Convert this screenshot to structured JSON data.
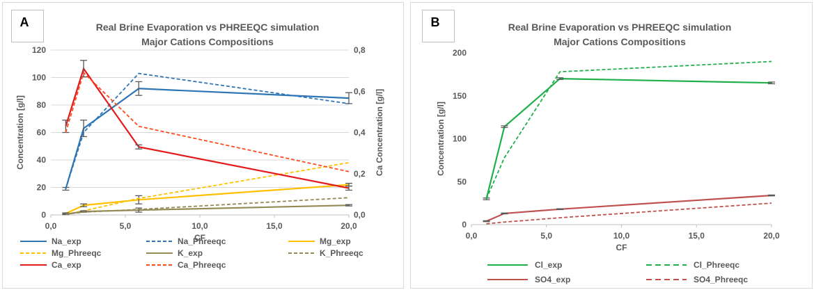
{
  "chart_data": [
    {
      "panel_label": "A",
      "type": "line",
      "title": "Real Brine Evaporation vs PHREEQC simulation",
      "subtitle": "Major Cations Compositions",
      "xlabel": "CF",
      "ylabel": "Concentration [g/l]",
      "y2label": "Ca  Concentration [g/l]",
      "xlim": [
        0,
        20
      ],
      "ylim": [
        0,
        120
      ],
      "y2lim": [
        0,
        0.8
      ],
      "x_ticks": [
        "0,0",
        "5,0",
        "10,0",
        "15,0",
        "20,0"
      ],
      "y_ticks": [
        "0",
        "20",
        "40",
        "60",
        "80",
        "100",
        "120"
      ],
      "y2_ticks": [
        "0,0",
        "0,2",
        "0,4",
        "0,6",
        "0,8"
      ],
      "grid": true,
      "legend_position": "bottom",
      "series": [
        {
          "name": "Na_exp",
          "color": "#2e75b6",
          "dash": "solid",
          "axis": "left",
          "x": [
            1,
            2.2,
            5.9,
            20
          ],
          "y": [
            19,
            63,
            92,
            85
          ],
          "errors": [
            1,
            6,
            5,
            4
          ]
        },
        {
          "name": "Na_Phreeqc",
          "color": "#2e75b6",
          "dash": "dashed",
          "axis": "left",
          "x": [
            1,
            2.2,
            5.9,
            20
          ],
          "y": [
            19,
            60,
            103,
            81
          ]
        },
        {
          "name": "Mg_exp",
          "color": "#ffc000",
          "dash": "solid",
          "axis": "left",
          "x": [
            1,
            2.2,
            5.9,
            20
          ],
          "y": [
            1,
            7,
            11,
            22
          ],
          "errors": [
            0.5,
            1,
            3,
            1
          ]
        },
        {
          "name": "Mg_Phreeqc",
          "color": "#ffc000",
          "dash": "dashed",
          "axis": "left",
          "x": [
            1,
            2.2,
            5.9,
            20
          ],
          "y": [
            0.5,
            3,
            12,
            38
          ]
        },
        {
          "name": "K_exp",
          "color": "#948a54",
          "dash": "solid",
          "axis": "left",
          "x": [
            1,
            2.2,
            5.9,
            20
          ],
          "y": [
            0.5,
            2.5,
            3.5,
            7
          ],
          "errors": [
            0.3,
            0.5,
            1.5,
            0.5
          ]
        },
        {
          "name": "K_Phreeqc",
          "color": "#948a54",
          "dash": "dashed",
          "axis": "left",
          "x": [
            1,
            2.2,
            5.9,
            20
          ],
          "y": [
            0.5,
            2,
            4,
            12.5
          ]
        },
        {
          "name": "Ca_exp",
          "color": "#e31a1c",
          "dash": "solid",
          "axis": "right",
          "x": [
            1,
            2.2,
            5.9,
            20
          ],
          "y": [
            0.43,
            0.71,
            0.33,
            0.13
          ],
          "errors": [
            0.03,
            0.04,
            0.01,
            0.01
          ]
        },
        {
          "name": "Ca_Phreeqc",
          "color": "#ff4a1c",
          "dash": "dashed",
          "axis": "right",
          "x": [
            1,
            2.2,
            5.9,
            20
          ],
          "y": [
            0.4,
            0.69,
            0.43,
            0.21
          ]
        }
      ]
    },
    {
      "panel_label": "B",
      "type": "line",
      "title": "Real Brine Evaporation vs PHREEQC simulation",
      "subtitle": "Major Cations Compositions",
      "xlabel": "CF",
      "ylabel": "Concentration [g/l]",
      "xlim": [
        0,
        20
      ],
      "ylim": [
        0,
        200
      ],
      "x_ticks": [
        "0,0",
        "5,0",
        "10,0",
        "15,0",
        "20,0"
      ],
      "y_ticks": [
        "0",
        "50",
        "100",
        "150",
        "200"
      ],
      "grid": false,
      "legend_position": "bottom",
      "series": [
        {
          "name": "Cl_exp",
          "color": "#1fb04a",
          "dash": "solid",
          "axis": "left",
          "x": [
            1,
            2.2,
            5.9,
            20
          ],
          "y": [
            30,
            114,
            170,
            165
          ],
          "errors": [
            1,
            1,
            1,
            1
          ]
        },
        {
          "name": "Cl_Phreeqc",
          "color": "#1fb04a",
          "dash": "dashed",
          "axis": "left",
          "x": [
            1,
            2.2,
            5.9,
            20
          ],
          "y": [
            30,
            78,
            178,
            190
          ]
        },
        {
          "name": "SO4_exp",
          "color": "#c0504d",
          "dash": "solid",
          "axis": "left",
          "x": [
            1,
            2.2,
            5.9,
            20
          ],
          "y": [
            4,
            13,
            18,
            34
          ],
          "errors": [
            0.5,
            0.5,
            0.5,
            0.5
          ]
        },
        {
          "name": "SO4_Phreeqc",
          "color": "#c0504d",
          "dash": "dashed",
          "axis": "left",
          "x": [
            1,
            2.2,
            5.9,
            20
          ],
          "y": [
            1,
            3,
            8,
            25
          ]
        }
      ]
    }
  ]
}
